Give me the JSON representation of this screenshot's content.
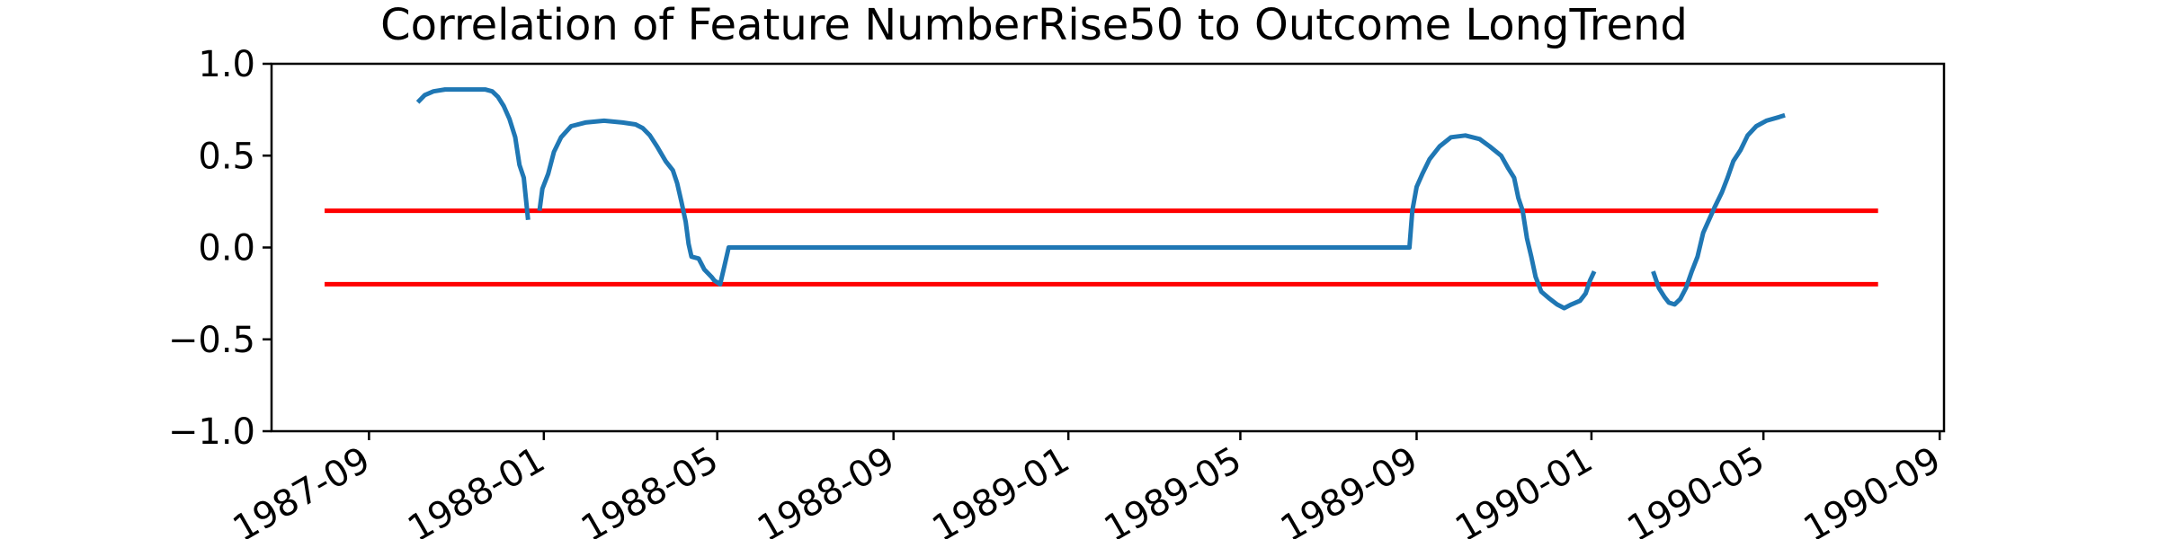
{
  "chart_data": {
    "type": "line",
    "title": "Correlation of Feature NumberRise50 to Outcome LongTrend",
    "xlabel": "",
    "ylabel": "",
    "ylim": [
      -1.0,
      1.0
    ],
    "xlim": [
      "1987-06-25",
      "1990-09-04"
    ],
    "grid": false,
    "y_ticks": [
      {
        "value": -1.0,
        "label": "−1.0"
      },
      {
        "value": -0.5,
        "label": "−0.5"
      },
      {
        "value": 0.0,
        "label": "0.0"
      },
      {
        "value": 0.5,
        "label": "0.5"
      },
      {
        "value": 1.0,
        "label": "1.0"
      }
    ],
    "x_ticks": [
      {
        "date": "1987-09-01",
        "label": "1987-09"
      },
      {
        "date": "1988-01-01",
        "label": "1988-01"
      },
      {
        "date": "1988-05-01",
        "label": "1988-05"
      },
      {
        "date": "1988-09-01",
        "label": "1988-09"
      },
      {
        "date": "1989-01-01",
        "label": "1989-01"
      },
      {
        "date": "1989-05-01",
        "label": "1989-05"
      },
      {
        "date": "1989-09-01",
        "label": "1989-09"
      },
      {
        "date": "1990-01-01",
        "label": "1990-01"
      },
      {
        "date": "1990-05-01",
        "label": "1990-05"
      },
      {
        "date": "1990-09-01",
        "label": "1990-09"
      }
    ],
    "series": [
      {
        "color": "#1f77b4",
        "segments": [
          [
            [
              "1987-10-05",
              0.79
            ],
            [
              "1987-10-10",
              0.83
            ],
            [
              "1987-10-16",
              0.85
            ],
            [
              "1987-10-24",
              0.86
            ],
            [
              "1987-11-03",
              0.86
            ],
            [
              "1987-11-13",
              0.86
            ],
            [
              "1987-11-21",
              0.86
            ],
            [
              "1987-11-26",
              0.85
            ],
            [
              "1987-11-30",
              0.82
            ],
            [
              "1987-12-04",
              0.77
            ],
            [
              "1987-12-08",
              0.7
            ],
            [
              "1987-12-12",
              0.6
            ],
            [
              "1987-12-15",
              0.45
            ],
            [
              "1987-12-18",
              0.38
            ],
            [
              "1987-12-21",
              0.15
            ]
          ],
          [
            [
              "1987-12-29",
              0.2
            ],
            [
              "1987-12-31",
              0.32
            ],
            [
              "1988-01-04",
              0.4
            ],
            [
              "1988-01-08",
              0.52
            ],
            [
              "1988-01-13",
              0.6
            ],
            [
              "1988-01-20",
              0.66
            ],
            [
              "1988-01-30",
              0.68
            ],
            [
              "1988-02-12",
              0.69
            ],
            [
              "1988-02-25",
              0.68
            ],
            [
              "1988-03-05",
              0.67
            ],
            [
              "1988-03-10",
              0.65
            ],
            [
              "1988-03-15",
              0.61
            ],
            [
              "1988-03-20",
              0.55
            ],
            [
              "1988-03-26",
              0.47
            ],
            [
              "1988-03-31",
              0.42
            ],
            [
              "1988-04-03",
              0.35
            ],
            [
              "1988-04-06",
              0.25
            ],
            [
              "1988-04-09",
              0.14
            ],
            [
              "1988-04-11",
              0.02
            ],
            [
              "1988-04-13",
              -0.05
            ],
            [
              "1988-04-18",
              -0.06
            ],
            [
              "1988-04-22",
              -0.12
            ],
            [
              "1988-04-27",
              -0.16
            ],
            [
              "1988-04-29",
              -0.18
            ],
            [
              "1988-05-03",
              -0.2
            ],
            [
              "1988-05-06",
              -0.1
            ],
            [
              "1988-05-09",
              0.0
            ],
            [
              "1989-08-27",
              0.0
            ],
            [
              "1989-08-29",
              0.2
            ],
            [
              "1989-09-01",
              0.33
            ],
            [
              "1989-09-05",
              0.4
            ],
            [
              "1989-09-10",
              0.48
            ],
            [
              "1989-09-17",
              0.55
            ],
            [
              "1989-09-25",
              0.6
            ],
            [
              "1989-10-05",
              0.61
            ],
            [
              "1989-10-15",
              0.59
            ],
            [
              "1989-10-22",
              0.55
            ],
            [
              "1989-10-30",
              0.5
            ],
            [
              "1989-11-04",
              0.43
            ],
            [
              "1989-11-08",
              0.38
            ],
            [
              "1989-11-11",
              0.27
            ],
            [
              "1989-11-14",
              0.2
            ],
            [
              "1989-11-17",
              0.05
            ],
            [
              "1989-11-20",
              -0.05
            ],
            [
              "1989-11-23",
              -0.16
            ],
            [
              "1989-11-27",
              -0.24
            ],
            [
              "1989-12-03",
              -0.28
            ],
            [
              "1989-12-08",
              -0.31
            ],
            [
              "1989-12-13",
              -0.33
            ],
            [
              "1989-12-18",
              -0.31
            ],
            [
              "1989-12-24",
              -0.29
            ],
            [
              "1989-12-28",
              -0.25
            ],
            [
              "1989-12-31",
              -0.18
            ],
            [
              "1990-01-03",
              -0.13
            ]
          ],
          [
            [
              "1990-02-13",
              -0.13
            ],
            [
              "1990-02-17",
              -0.22
            ],
            [
              "1990-02-21",
              -0.27
            ],
            [
              "1990-02-24",
              -0.3
            ],
            [
              "1990-02-28",
              -0.31
            ],
            [
              "1990-03-04",
              -0.28
            ],
            [
              "1990-03-08",
              -0.22
            ],
            [
              "1990-03-12",
              -0.13
            ],
            [
              "1990-03-16",
              -0.05
            ],
            [
              "1990-03-20",
              0.08
            ],
            [
              "1990-03-24",
              0.15
            ],
            [
              "1990-03-28",
              0.22
            ],
            [
              "1990-04-02",
              0.3
            ],
            [
              "1990-04-06",
              0.38
            ],
            [
              "1990-04-10",
              0.47
            ],
            [
              "1990-04-15",
              0.53
            ],
            [
              "1990-04-20",
              0.61
            ],
            [
              "1990-04-26",
              0.66
            ],
            [
              "1990-05-03",
              0.69
            ],
            [
              "1990-05-12",
              0.71
            ],
            [
              "1990-05-16",
              0.72
            ]
          ]
        ]
      }
    ],
    "reference_lines": [
      {
        "value": 0.2,
        "color": "#ff0000",
        "from": "1987-08-01",
        "to": "1990-07-20"
      },
      {
        "value": -0.2,
        "color": "#ff0000",
        "from": "1987-08-01",
        "to": "1990-07-20"
      }
    ]
  }
}
